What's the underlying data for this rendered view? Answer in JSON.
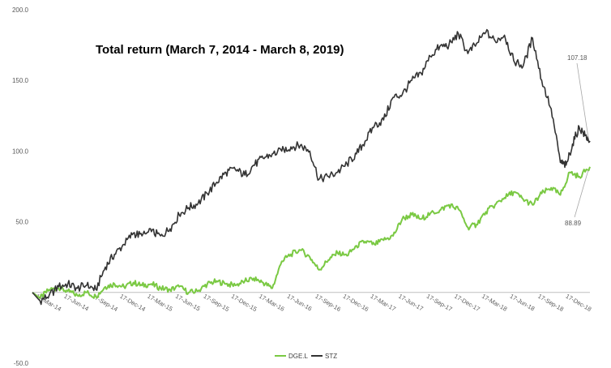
{
  "chart_data": {
    "type": "line",
    "title": "Total return (March 7, 2014 - March 8, 2019)",
    "ylim": [
      -50,
      200
    ],
    "y_ticks": [
      "-50.0",
      "",
      "50.0",
      "100.0",
      "150.0",
      "200.0"
    ],
    "y_tick_values": [
      -50,
      0,
      50,
      100,
      150,
      200
    ],
    "xlim": [
      "2014-03-07",
      "2019-03-08"
    ],
    "x_ticks": [
      {
        "date": "2014-03-17",
        "label": "17-Mar-14"
      },
      {
        "date": "2014-06-17",
        "label": "17-Jun-14"
      },
      {
        "date": "2014-09-17",
        "label": "17-Sep-14"
      },
      {
        "date": "2014-12-17",
        "label": "17-Dec-14"
      },
      {
        "date": "2015-03-17",
        "label": "17-Mar-15"
      },
      {
        "date": "2015-06-17",
        "label": "17-Jun-15"
      },
      {
        "date": "2015-09-17",
        "label": "17-Sep-15"
      },
      {
        "date": "2015-12-17",
        "label": "17-Dec-15"
      },
      {
        "date": "2016-03-17",
        "label": "17-Mar-16"
      },
      {
        "date": "2016-06-17",
        "label": "17-Jun-16"
      },
      {
        "date": "2016-09-17",
        "label": "17-Sep-16"
      },
      {
        "date": "2016-12-17",
        "label": "17-Dec-16"
      },
      {
        "date": "2017-03-17",
        "label": "17-Mar-17"
      },
      {
        "date": "2017-06-17",
        "label": "17-Jun-17"
      },
      {
        "date": "2017-09-17",
        "label": "17-Sep-17"
      },
      {
        "date": "2017-12-17",
        "label": "17-Dec-17"
      },
      {
        "date": "2018-03-17",
        "label": "17-Mar-18"
      },
      {
        "date": "2018-06-17",
        "label": "17-Jun-18"
      },
      {
        "date": "2018-09-17",
        "label": "17-Sep-18"
      },
      {
        "date": "2018-12-17",
        "label": "17-Dec-18"
      }
    ],
    "grid": false,
    "legend_position": "bottom-center",
    "series": [
      {
        "name": "DGE.L",
        "color": "#7ac943",
        "points": [
          [
            "2014-03-07",
            0
          ],
          [
            "2014-04-01",
            -4
          ],
          [
            "2014-05-01",
            2
          ],
          [
            "2014-06-01",
            3
          ],
          [
            "2014-07-01",
            1
          ],
          [
            "2014-08-01",
            -2
          ],
          [
            "2014-09-01",
            0
          ],
          [
            "2014-10-01",
            -3
          ],
          [
            "2014-11-01",
            4
          ],
          [
            "2014-12-01",
            6
          ],
          [
            "2015-01-01",
            4
          ],
          [
            "2015-02-01",
            7
          ],
          [
            "2015-03-01",
            5
          ],
          [
            "2015-04-01",
            6
          ],
          [
            "2015-05-01",
            3
          ],
          [
            "2015-06-01",
            2
          ],
          [
            "2015-07-01",
            4
          ],
          [
            "2015-08-01",
            0
          ],
          [
            "2015-09-01",
            1
          ],
          [
            "2015-10-01",
            6
          ],
          [
            "2015-11-01",
            8
          ],
          [
            "2015-12-01",
            6
          ],
          [
            "2016-01-01",
            5
          ],
          [
            "2016-02-01",
            8
          ],
          [
            "2016-03-01",
            10
          ],
          [
            "2016-04-01",
            7
          ],
          [
            "2016-05-01",
            3
          ],
          [
            "2016-06-01",
            22
          ],
          [
            "2016-07-01",
            27
          ],
          [
            "2016-08-01",
            30
          ],
          [
            "2016-09-01",
            25
          ],
          [
            "2016-10-01",
            16
          ],
          [
            "2016-11-01",
            23
          ],
          [
            "2016-12-01",
            28
          ],
          [
            "2017-01-01",
            26
          ],
          [
            "2017-02-01",
            33
          ],
          [
            "2017-03-01",
            36
          ],
          [
            "2017-04-01",
            34
          ],
          [
            "2017-05-01",
            37
          ],
          [
            "2017-06-01",
            40
          ],
          [
            "2017-07-01",
            52
          ],
          [
            "2017-08-01",
            55
          ],
          [
            "2017-09-01",
            52
          ],
          [
            "2017-10-01",
            56
          ],
          [
            "2017-11-01",
            58
          ],
          [
            "2017-12-01",
            62
          ],
          [
            "2018-01-01",
            59
          ],
          [
            "2018-02-01",
            46
          ],
          [
            "2018-03-01",
            48
          ],
          [
            "2018-04-01",
            57
          ],
          [
            "2018-05-01",
            62
          ],
          [
            "2018-06-01",
            67
          ],
          [
            "2018-07-01",
            71
          ],
          [
            "2018-08-01",
            66
          ],
          [
            "2018-09-01",
            62
          ],
          [
            "2018-10-01",
            70
          ],
          [
            "2018-11-01",
            74
          ],
          [
            "2018-12-01",
            69
          ],
          [
            "2019-01-01",
            85
          ],
          [
            "2019-02-01",
            82
          ],
          [
            "2019-03-08",
            88.89
          ]
        ]
      },
      {
        "name": "STZ",
        "color": "#333333",
        "points": [
          [
            "2014-03-07",
            0
          ],
          [
            "2014-04-01",
            -6
          ],
          [
            "2014-05-01",
            -2
          ],
          [
            "2014-06-01",
            4
          ],
          [
            "2014-07-01",
            6
          ],
          [
            "2014-08-01",
            3
          ],
          [
            "2014-09-01",
            5
          ],
          [
            "2014-10-01",
            2
          ],
          [
            "2014-11-01",
            18
          ],
          [
            "2014-12-01",
            27
          ],
          [
            "2015-01-01",
            34
          ],
          [
            "2015-02-01",
            42
          ],
          [
            "2015-03-01",
            40
          ],
          [
            "2015-04-01",
            43
          ],
          [
            "2015-05-01",
            40
          ],
          [
            "2015-06-01",
            45
          ],
          [
            "2015-07-01",
            55
          ],
          [
            "2015-08-01",
            60
          ],
          [
            "2015-09-01",
            63
          ],
          [
            "2015-10-01",
            70
          ],
          [
            "2015-11-01",
            78
          ],
          [
            "2015-12-01",
            85
          ],
          [
            "2016-01-01",
            87
          ],
          [
            "2016-02-01",
            83
          ],
          [
            "2016-03-01",
            90
          ],
          [
            "2016-04-01",
            95
          ],
          [
            "2016-05-01",
            98
          ],
          [
            "2016-06-01",
            100
          ],
          [
            "2016-07-01",
            103
          ],
          [
            "2016-08-01",
            104
          ],
          [
            "2016-09-01",
            100
          ],
          [
            "2016-10-01",
            80
          ],
          [
            "2016-11-01",
            82
          ],
          [
            "2016-12-01",
            85
          ],
          [
            "2017-01-01",
            91
          ],
          [
            "2017-02-01",
            98
          ],
          [
            "2017-03-01",
            107
          ],
          [
            "2017-04-01",
            118
          ],
          [
            "2017-05-01",
            122
          ],
          [
            "2017-06-01",
            138
          ],
          [
            "2017-07-01",
            140
          ],
          [
            "2017-08-01",
            150
          ],
          [
            "2017-09-01",
            155
          ],
          [
            "2017-10-01",
            167
          ],
          [
            "2017-11-01",
            174
          ],
          [
            "2017-12-01",
            175
          ],
          [
            "2018-01-01",
            183
          ],
          [
            "2018-02-01",
            169
          ],
          [
            "2018-03-01",
            176
          ],
          [
            "2018-04-01",
            184
          ],
          [
            "2018-05-01",
            178
          ],
          [
            "2018-06-01",
            182
          ],
          [
            "2018-07-01",
            164
          ],
          [
            "2018-08-01",
            160
          ],
          [
            "2018-09-01",
            180
          ],
          [
            "2018-10-01",
            150
          ],
          [
            "2018-11-01",
            130
          ],
          [
            "2018-12-01",
            92
          ],
          [
            "2018-12-20",
            90
          ],
          [
            "2019-01-10",
            105
          ],
          [
            "2019-02-01",
            117
          ],
          [
            "2019-02-20",
            111
          ],
          [
            "2019-03-08",
            107.18
          ]
        ]
      }
    ],
    "annotations": [
      {
        "text": "107.18",
        "series": "STZ"
      },
      {
        "text": "88.89",
        "series": "DGE.L"
      }
    ]
  }
}
